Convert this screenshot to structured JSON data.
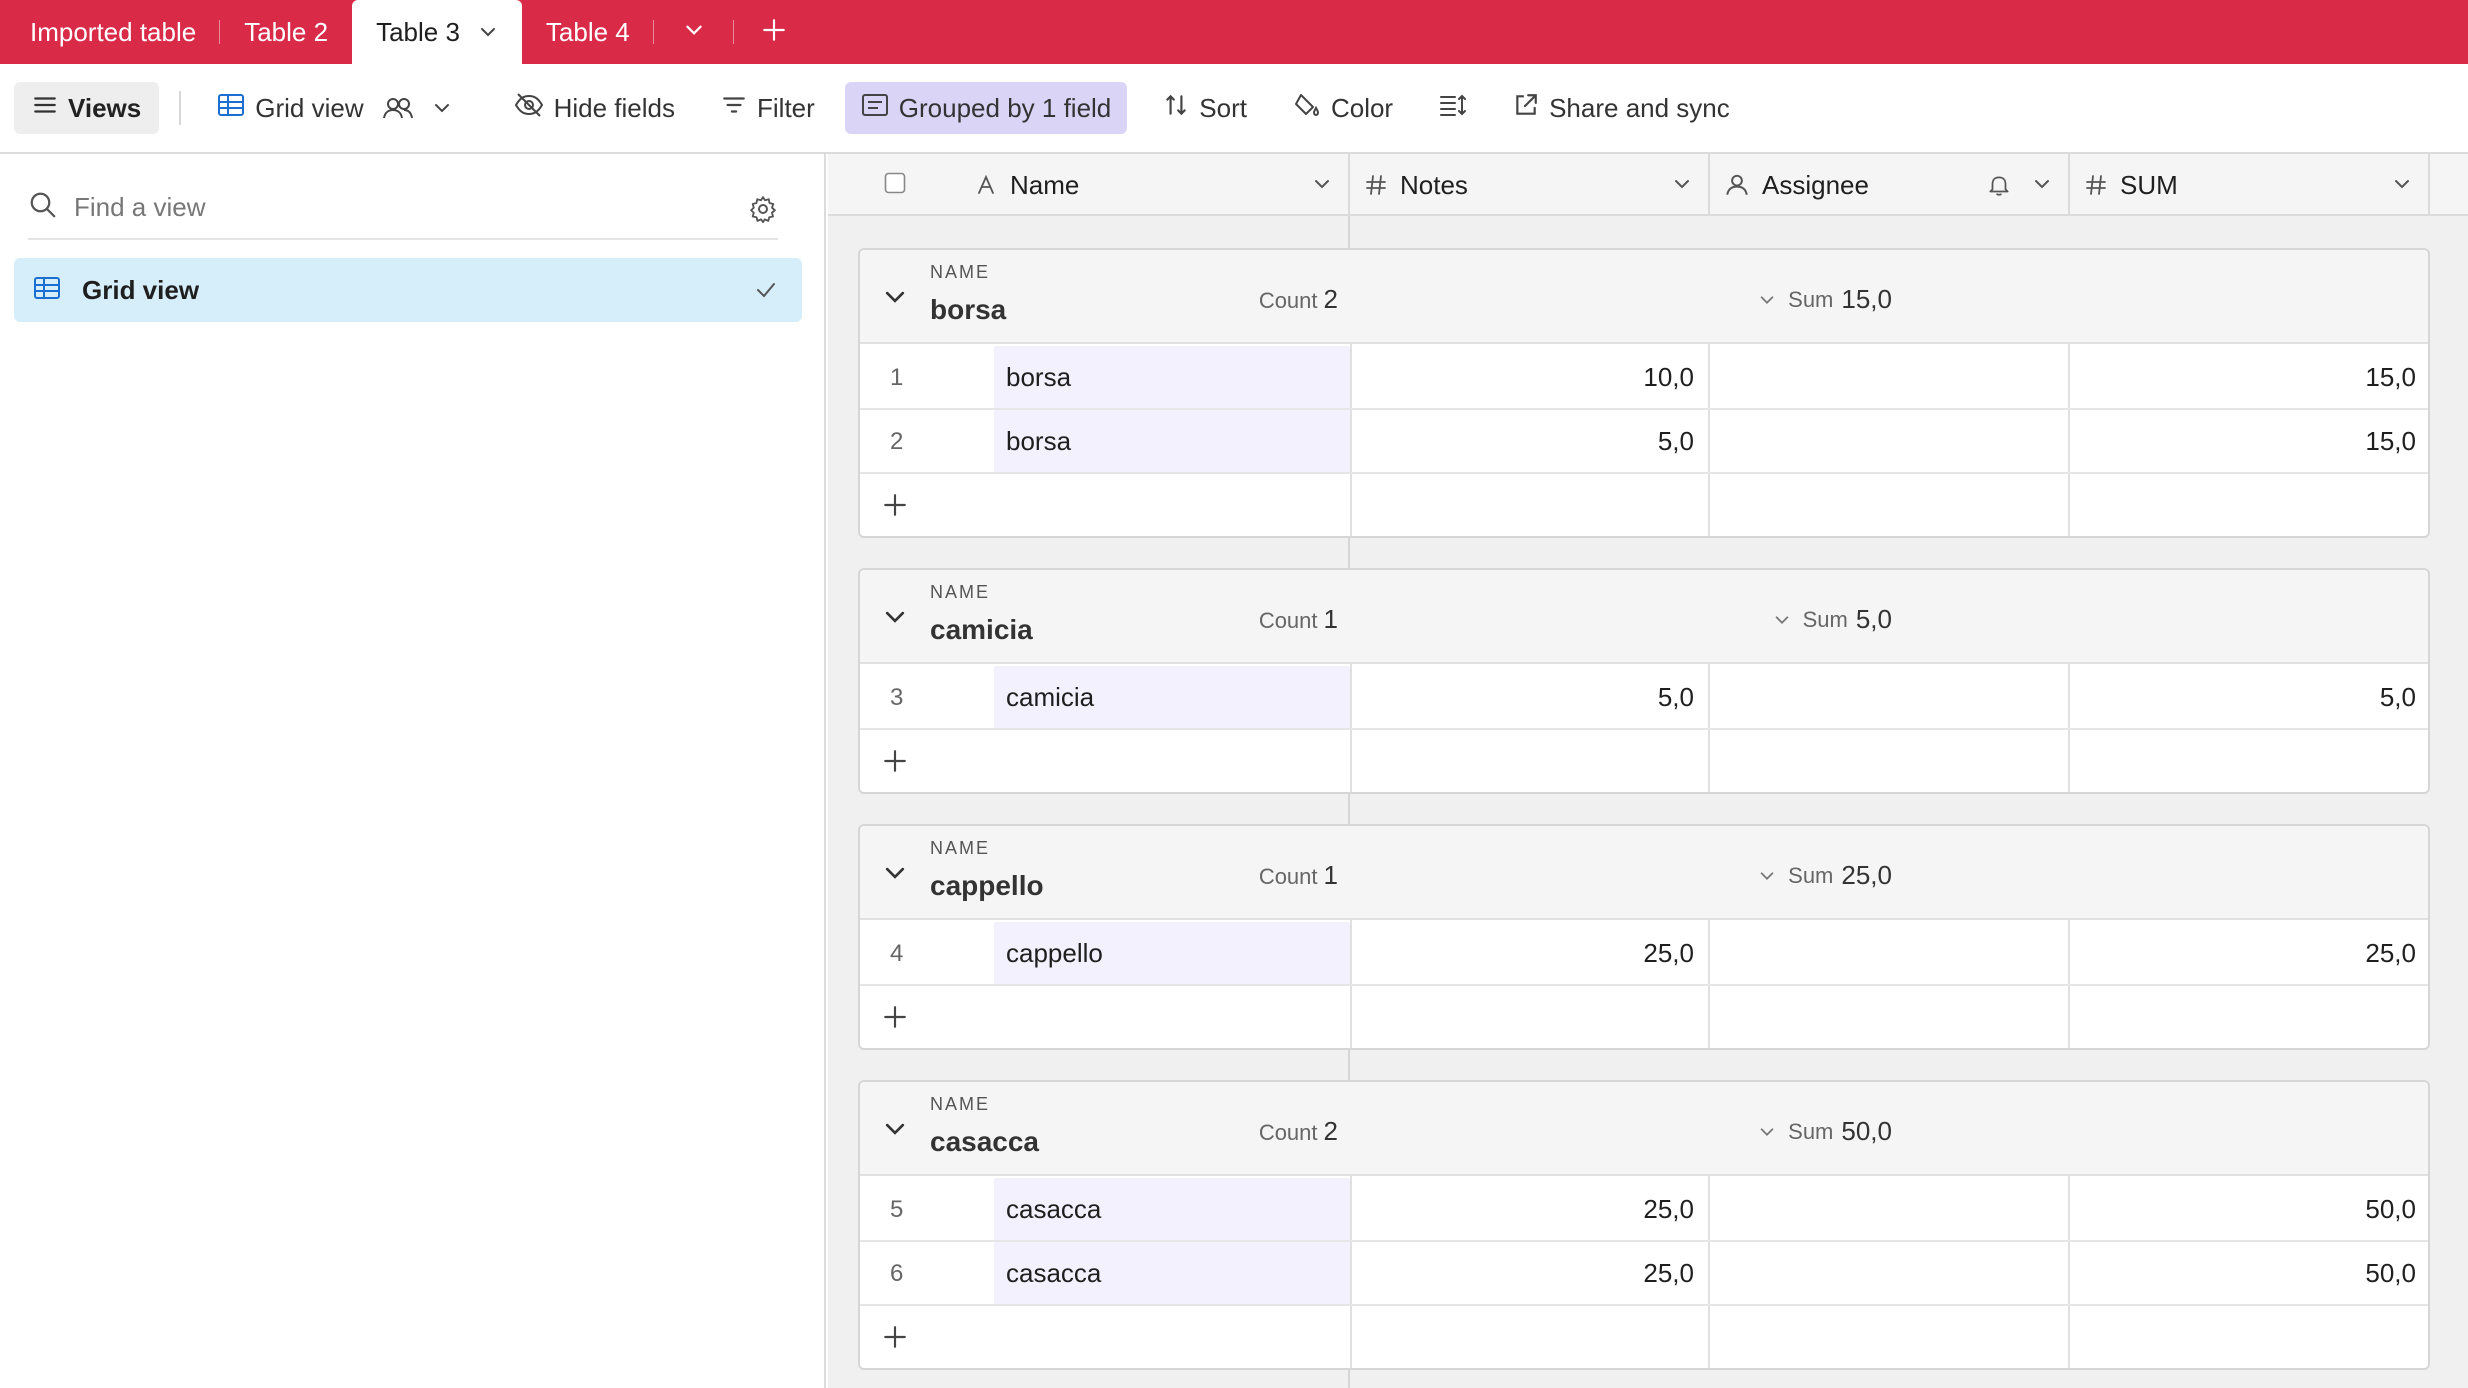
{
  "tabs": {
    "items": [
      {
        "label": "Imported table"
      },
      {
        "label": "Table 2"
      },
      {
        "label": "Table 3",
        "active": true
      },
      {
        "label": "Table 4"
      }
    ]
  },
  "toolbar": {
    "views_label": "Views",
    "view_name": "Grid view",
    "hide_fields_label": "Hide fields",
    "filter_label": "Filter",
    "grouped_label": "Grouped by 1 field",
    "sort_label": "Sort",
    "color_label": "Color",
    "share_label": "Share and sync"
  },
  "sidebar": {
    "search_placeholder": "Find a view",
    "views": [
      {
        "label": "Grid view",
        "selected": true
      }
    ]
  },
  "grid": {
    "columns": [
      {
        "label": "Name",
        "icon": "text-field-icon"
      },
      {
        "label": "Notes",
        "icon": "number-field-icon"
      },
      {
        "label": "Assignee",
        "icon": "user-field-icon"
      },
      {
        "label": "SUM",
        "icon": "number-field-icon"
      }
    ],
    "group_field": "NAME",
    "count_label": "Count",
    "sum_label": "Sum",
    "groups": [
      {
        "name": "borsa",
        "count": "2",
        "sum": "15,0",
        "rows": [
          {
            "num": "1",
            "name": "borsa",
            "notes": "10,0",
            "assignee": "",
            "sum": "15,0"
          },
          {
            "num": "2",
            "name": "borsa",
            "notes": "5,0",
            "assignee": "",
            "sum": "15,0"
          }
        ]
      },
      {
        "name": "camicia",
        "count": "1",
        "sum": "5,0",
        "rows": [
          {
            "num": "3",
            "name": "camicia",
            "notes": "5,0",
            "assignee": "",
            "sum": "5,0"
          }
        ]
      },
      {
        "name": "cappello",
        "count": "1",
        "sum": "25,0",
        "rows": [
          {
            "num": "4",
            "name": "cappello",
            "notes": "25,0",
            "assignee": "",
            "sum": "25,0"
          }
        ]
      },
      {
        "name": "casacca",
        "count": "2",
        "sum": "50,0",
        "rows": [
          {
            "num": "5",
            "name": "casacca",
            "notes": "25,0",
            "assignee": "",
            "sum": "50,0"
          },
          {
            "num": "6",
            "name": "casacca",
            "notes": "25,0",
            "assignee": "",
            "sum": "50,0"
          }
        ]
      }
    ]
  },
  "colors": {
    "brand": "#d92a48",
    "grouped_bg": "#dad4f7",
    "selected_view_bg": "#d6eefa",
    "primary_field_bg": "#f3f1fd"
  }
}
